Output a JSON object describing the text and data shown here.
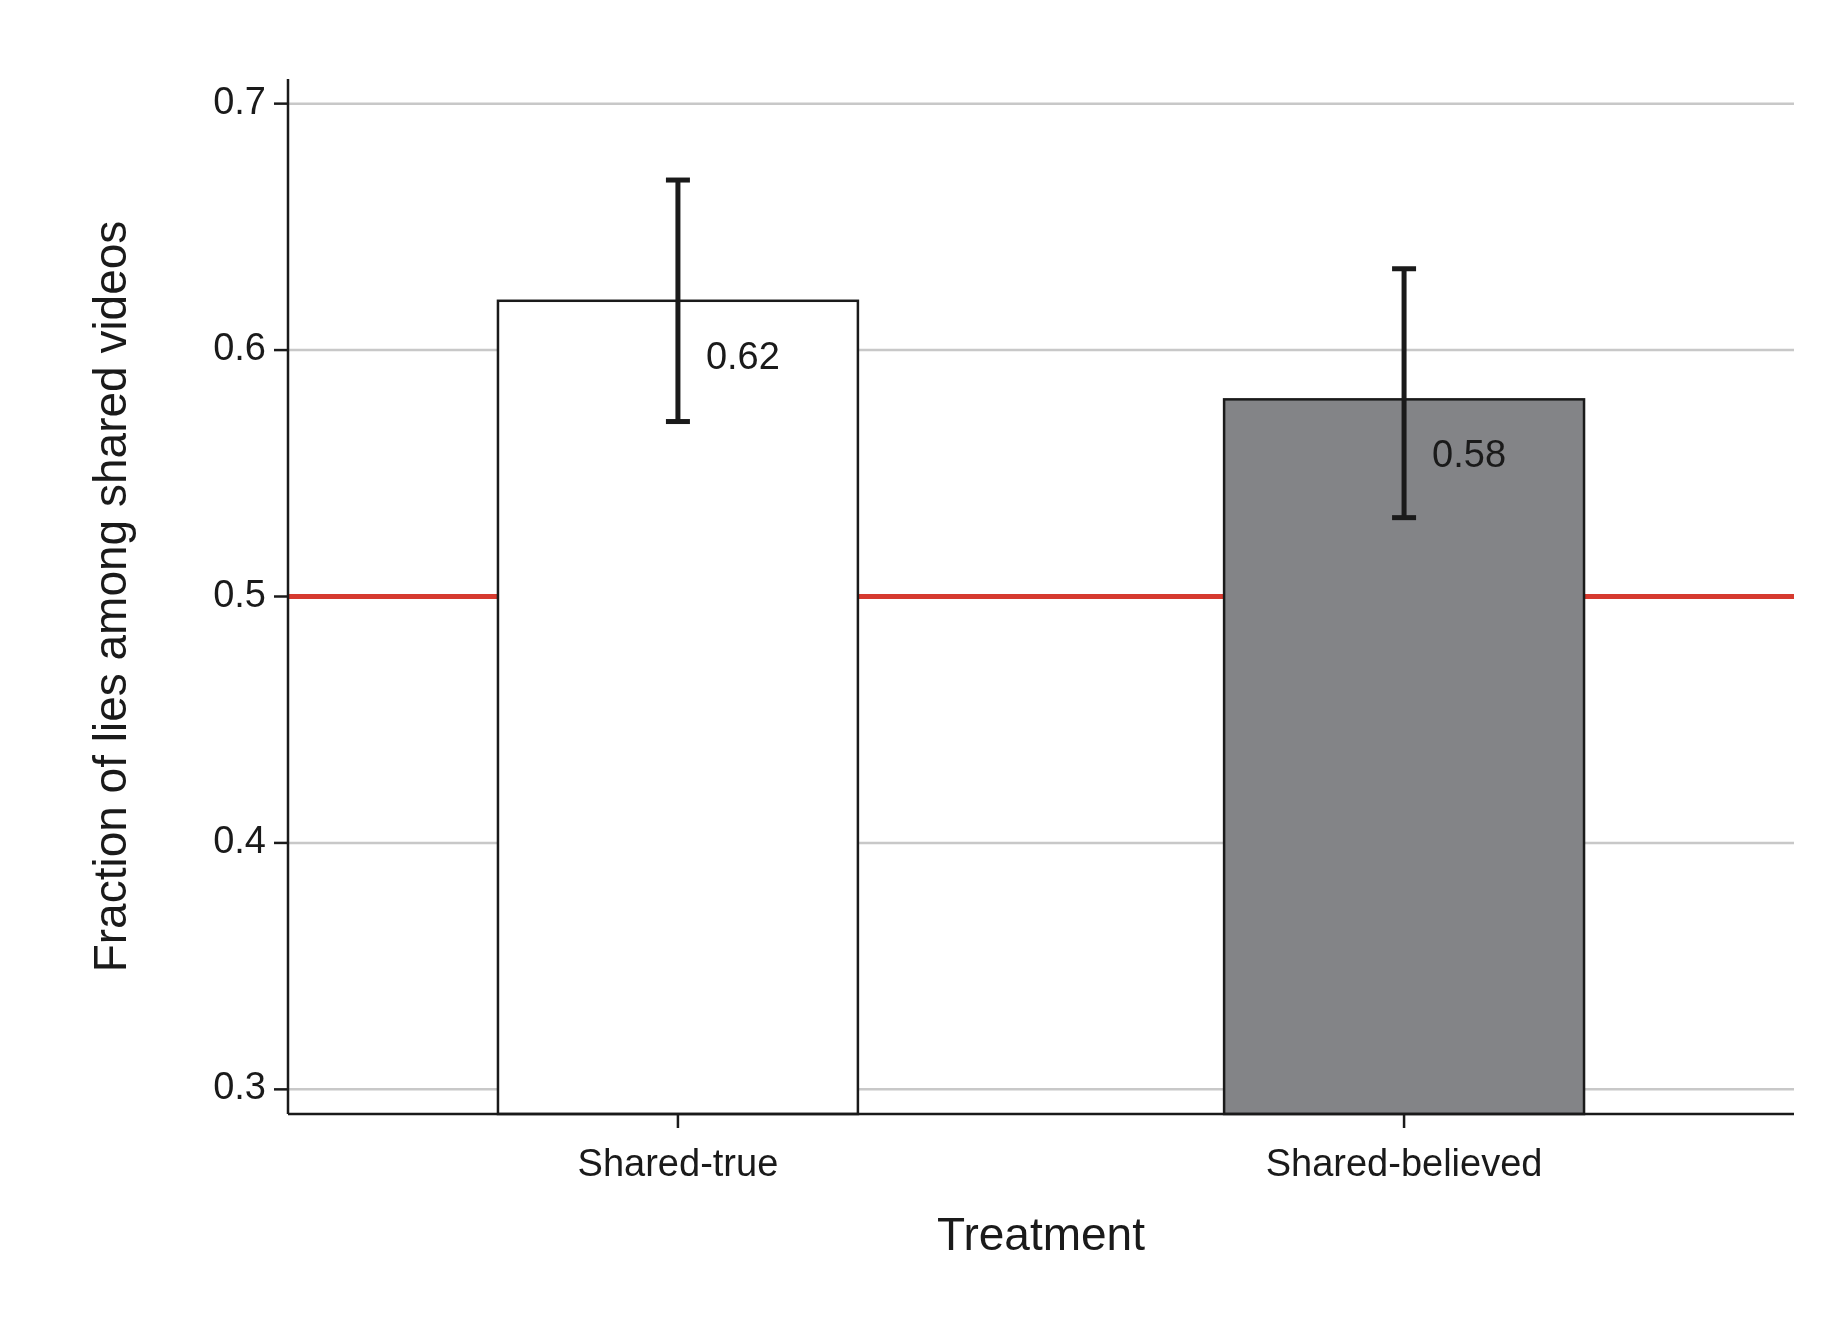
{
  "chart_data": {
    "type": "bar",
    "xlabel": "Treatment",
    "ylabel": "Fraction of lies among shared videos",
    "categories": [
      "Shared-true",
      "Shared-believed"
    ],
    "values": [
      0.62,
      0.58
    ],
    "colors": [
      "#ffffff",
      "#838487"
    ],
    "errors": [
      [
        0.571,
        0.669
      ],
      [
        0.532,
        0.633
      ]
    ],
    "data_labels": true,
    "ylim": [
      0.29,
      0.71
    ],
    "yticks": [
      0.3,
      0.4,
      0.5,
      0.6,
      0.7
    ],
    "grid": "y",
    "ref_lines": [
      {
        "axis": "y",
        "value": 0.5,
        "color": "#d63a2f"
      }
    ]
  }
}
